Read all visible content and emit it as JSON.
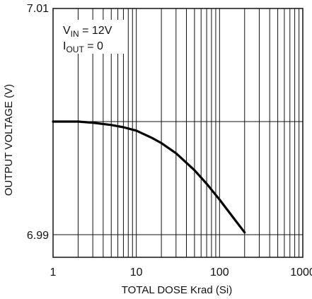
{
  "chart_data": {
    "type": "line",
    "xscale": "log",
    "xlim": [
      1,
      1000
    ],
    "ylim": [
      6.988,
      7.01
    ],
    "xlabel": "TOTAL DOSE Krad (Si)",
    "ylabel": "OUTPUT VOLTAGE (V)",
    "x_tick_labels": [
      "1",
      "10",
      "100",
      "1000"
    ],
    "y_tick_labels": [
      "6.99",
      "7.01"
    ],
    "annotation": {
      "line1_main": "V",
      "line1_sub": "IN",
      "line1_rest": " = 12V",
      "line2_main": "I",
      "line2_sub": "OUT",
      "line2_rest": " = 0"
    },
    "grid": true,
    "series": [
      {
        "x": [
          1,
          2,
          3,
          5,
          7,
          10,
          15,
          20,
          30,
          50,
          70,
          100,
          150,
          200
        ],
        "y": [
          7.0,
          7.0,
          6.9999,
          6.9997,
          6.9995,
          6.9992,
          6.9986,
          6.9981,
          6.9972,
          6.9957,
          6.9945,
          6.9931,
          6.9914,
          6.9902
        ]
      }
    ]
  }
}
